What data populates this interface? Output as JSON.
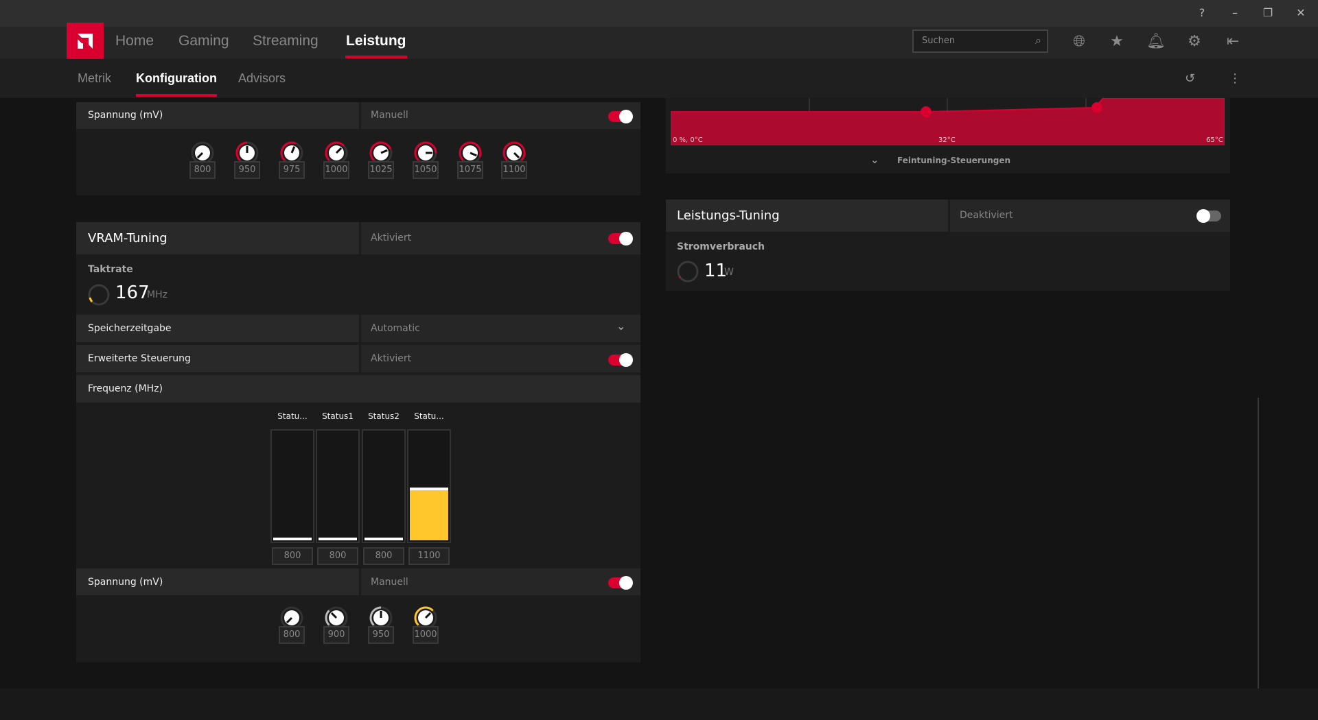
{
  "window": {
    "help_icon": "help-circle-icon",
    "minimize": "–",
    "restore": "❐",
    "close": "✕"
  },
  "nav": {
    "items": [
      {
        "label": "Home"
      },
      {
        "label": "Gaming"
      },
      {
        "label": "Streaming"
      },
      {
        "label": "Leistung",
        "active": true
      }
    ],
    "search_placeholder": "Suchen",
    "icons": [
      "globe-icon",
      "star-icon",
      "bell-icon",
      "gear-icon",
      "sidebar-collapse-icon"
    ]
  },
  "subnav": {
    "items": [
      {
        "label": "Metrik"
      },
      {
        "label": "Konfiguration",
        "active": true
      },
      {
        "label": "Advisors"
      }
    ]
  },
  "colors": {
    "accent": "#d90030",
    "highlight": "#ffc72c"
  },
  "gpu_voltage": {
    "label": "Spannung (mV)",
    "mode": "Manuell",
    "enabled": true,
    "knobs": [
      800,
      950,
      975,
      1000,
      1025,
      1050,
      1075,
      1100
    ]
  },
  "vram": {
    "title": "VRAM-Tuning",
    "status": "Aktiviert",
    "enabled": true,
    "clock_label": "Taktrate",
    "clock_value": "167",
    "clock_unit": "MHz",
    "timing_label": "Speicherzeitgabe",
    "timing_value": "Automatic",
    "advanced_label": "Erweiterte Steuerung",
    "advanced_status": "Aktiviert",
    "advanced_enabled": true,
    "freq_label": "Frequenz (MHz)",
    "states": [
      {
        "label": "Statu...",
        "value": "800",
        "fill": 0
      },
      {
        "label": "Status1",
        "value": "800",
        "fill": 0
      },
      {
        "label": "Status2",
        "value": "800",
        "fill": 0
      },
      {
        "label": "Statu...",
        "value": "1100",
        "fill": 0.45
      }
    ],
    "voltage_label": "Spannung (mV)",
    "voltage_mode": "Manuell",
    "voltage_enabled": true,
    "voltage_knobs": [
      800,
      900,
      950,
      1000
    ]
  },
  "fan": {
    "label_start": "0 %, 0°C",
    "label_mid": "32°C",
    "label_end": "65°C",
    "fine_tuning": "Feintuning-Steuerungen"
  },
  "power": {
    "title": "Leistungs-Tuning",
    "status": "Deaktiviert",
    "enabled": false,
    "usage_label": "Stromverbrauch",
    "usage_value": "11",
    "usage_unit": "W"
  }
}
